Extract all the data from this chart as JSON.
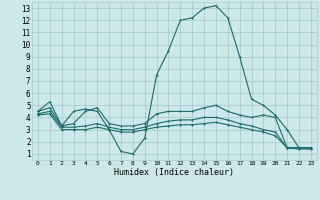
{
  "bg_color": "#cce8e8",
  "grid_color": "#aacccc",
  "line_color": "#1a6b6b",
  "xlabel": "Humidex (Indice chaleur)",
  "xlim": [
    -0.5,
    23.5
  ],
  "ylim": [
    0.5,
    13.5
  ],
  "xticks": [
    0,
    1,
    2,
    3,
    4,
    5,
    6,
    7,
    8,
    9,
    10,
    11,
    12,
    13,
    14,
    15,
    16,
    17,
    18,
    19,
    20,
    21,
    22,
    23
  ],
  "yticks": [
    1,
    2,
    3,
    4,
    5,
    6,
    7,
    8,
    9,
    10,
    11,
    12,
    13
  ],
  "line1_x": [
    0,
    1,
    2,
    3,
    4,
    5,
    6,
    7,
    8,
    9,
    10,
    11,
    12,
    13,
    14,
    15,
    16,
    17,
    18,
    19,
    20,
    21,
    22,
    23
  ],
  "line1_y": [
    4.5,
    5.3,
    3.3,
    4.5,
    4.7,
    4.5,
    3.0,
    1.2,
    1.0,
    2.3,
    7.5,
    9.5,
    12.0,
    12.2,
    13.0,
    13.2,
    12.2,
    9.0,
    5.5,
    5.0,
    4.2,
    3.0,
    1.5,
    1.5
  ],
  "line2_x": [
    0,
    1,
    2,
    3,
    4,
    5,
    6,
    7,
    8,
    9,
    10,
    11,
    12,
    13,
    14,
    15,
    16,
    17,
    18,
    19,
    20,
    21,
    22,
    23
  ],
  "line2_y": [
    4.5,
    4.8,
    3.3,
    3.5,
    4.5,
    4.8,
    3.5,
    3.3,
    3.3,
    3.5,
    4.3,
    4.5,
    4.5,
    4.5,
    4.8,
    5.0,
    4.5,
    4.2,
    4.0,
    4.2,
    4.0,
    1.5,
    1.5,
    1.5
  ],
  "line3_x": [
    0,
    1,
    2,
    3,
    4,
    5,
    6,
    7,
    8,
    9,
    10,
    11,
    12,
    13,
    14,
    15,
    16,
    17,
    18,
    19,
    20,
    21,
    22,
    23
  ],
  "line3_y": [
    4.3,
    4.5,
    3.2,
    3.2,
    3.3,
    3.5,
    3.2,
    3.0,
    3.0,
    3.2,
    3.5,
    3.7,
    3.8,
    3.8,
    4.0,
    4.0,
    3.8,
    3.5,
    3.3,
    3.0,
    2.8,
    1.5,
    1.5,
    1.5
  ],
  "line4_x": [
    0,
    1,
    2,
    3,
    4,
    5,
    6,
    7,
    8,
    9,
    10,
    11,
    12,
    13,
    14,
    15,
    16,
    17,
    18,
    19,
    20,
    21,
    22,
    23
  ],
  "line4_y": [
    4.2,
    4.3,
    3.0,
    3.0,
    3.0,
    3.2,
    3.0,
    2.8,
    2.8,
    3.0,
    3.2,
    3.3,
    3.4,
    3.4,
    3.5,
    3.6,
    3.4,
    3.2,
    3.0,
    2.8,
    2.5,
    1.5,
    1.4,
    1.4
  ]
}
